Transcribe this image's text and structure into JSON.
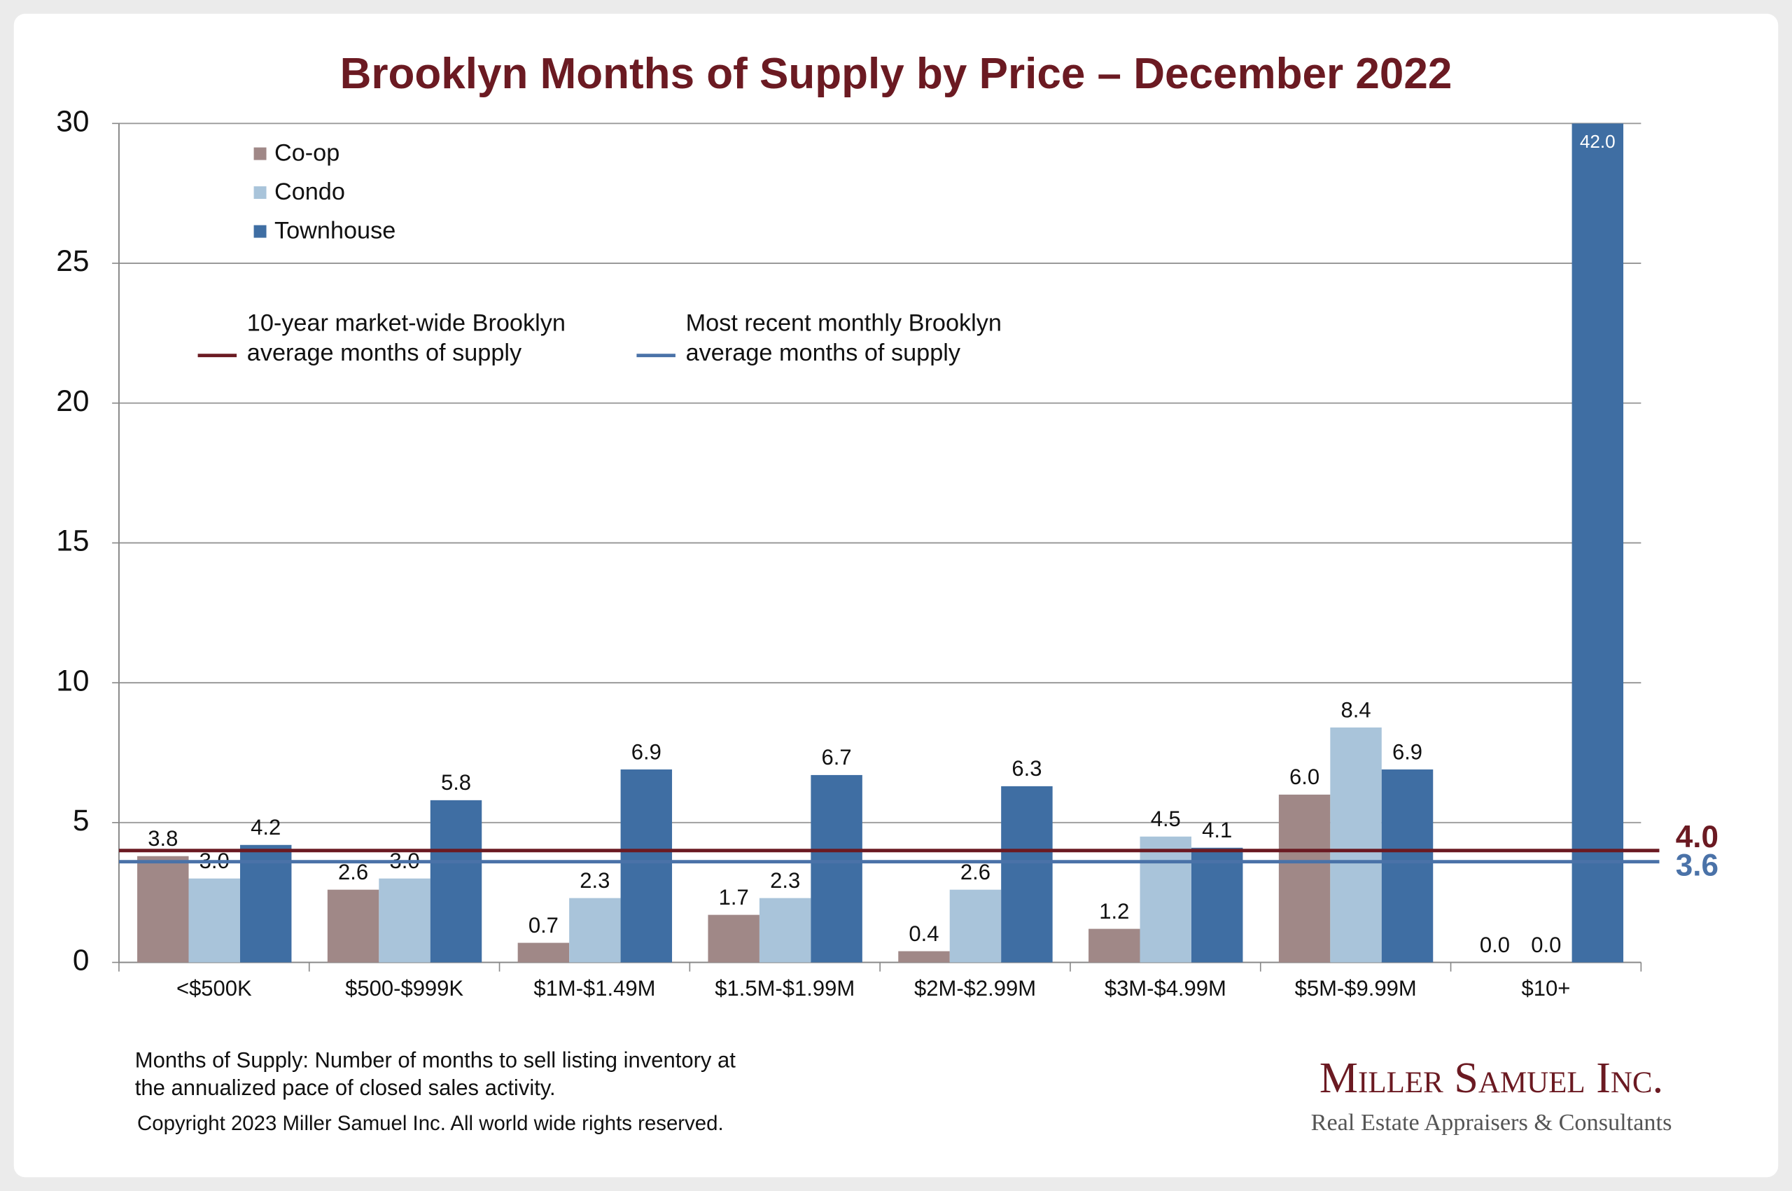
{
  "chart_data": {
    "type": "bar",
    "title": "Brooklyn Months of Supply by Price – December 2022",
    "categories": [
      "<$500K",
      "$500-$999K",
      "$1M-$1.49M",
      "$1.5M-$1.99M",
      "$2M-$2.99M",
      "$3M-$4.99M",
      "$5M-$9.99M",
      "$10+"
    ],
    "series": [
      {
        "name": "Co-op",
        "color": "#a08887",
        "values": [
          3.8,
          2.6,
          0.7,
          1.7,
          0.4,
          1.2,
          6,
          0
        ],
        "value_labels": [
          "3.8",
          "2.6",
          "0.7",
          "1.7",
          "0.4",
          "1.2",
          "6.0",
          "0.0"
        ]
      },
      {
        "name": "Condo",
        "color": "#a9c4da",
        "values": [
          3,
          3,
          2.3,
          2.3,
          2.6,
          4.5,
          8.4,
          0
        ],
        "value_labels": [
          "3.0",
          "3.0",
          "2.3",
          "2.3",
          "2.6",
          "4.5",
          "8.4",
          "0.0"
        ]
      },
      {
        "name": "Townhouse",
        "color": "#3f6ea3",
        "values": [
          4.2,
          5.8,
          6.9,
          6.7,
          6.3,
          4.1,
          6.9,
          42
        ],
        "value_labels": [
          "4.2",
          "5.8",
          "6.9",
          "6.7",
          "6.3",
          "4.1",
          "6.9",
          "42.0"
        ]
      }
    ],
    "reference_lines": [
      {
        "label_lines": [
          "10-year market-wide Brooklyn",
          "average months of supply"
        ],
        "value": 4,
        "value_label": "4.0",
        "color": "#6b1a22"
      },
      {
        "label_lines": [
          "Most recent monthly Brooklyn",
          "average months of supply"
        ],
        "value": 3.6,
        "value_label": "3.6",
        "color": "#4a72a8"
      }
    ],
    "ylim": [
      0,
      30
    ],
    "yticks": [
      0,
      5,
      10,
      15,
      20,
      25,
      30
    ],
    "grid": true,
    "legend": "upper left"
  },
  "footer": {
    "note_lines": [
      "Months of Supply: Number of months to sell listing inventory at",
      "the annualized pace of closed sales activity."
    ],
    "copyright": "Copyright 2023 Miller Samuel Inc.  All world wide rights reserved.",
    "logo": "Miller Samuel Inc.",
    "tagline": "Real Estate Appraisers & Consultants"
  }
}
